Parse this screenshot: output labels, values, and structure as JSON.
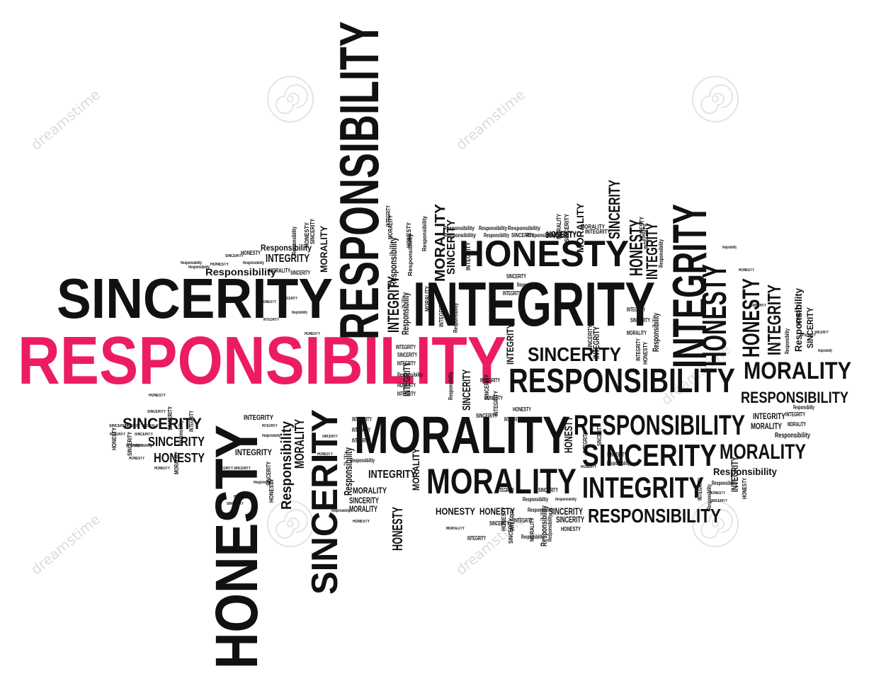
{
  "colors": {
    "text": "#111111",
    "accent": "#ec1c64",
    "background": "#ffffff",
    "watermark": "#dcdcdc"
  },
  "watermark": {
    "text": "dreamstime"
  },
  "words": {
    "responsibility": "RESPONSIBILITY",
    "responsibility_mixed": "Responsibility",
    "sincerity": "SINCERITY",
    "integrity": "INTEGRITY",
    "honesty": "HONESTY",
    "morality": "MORALITY"
  }
}
